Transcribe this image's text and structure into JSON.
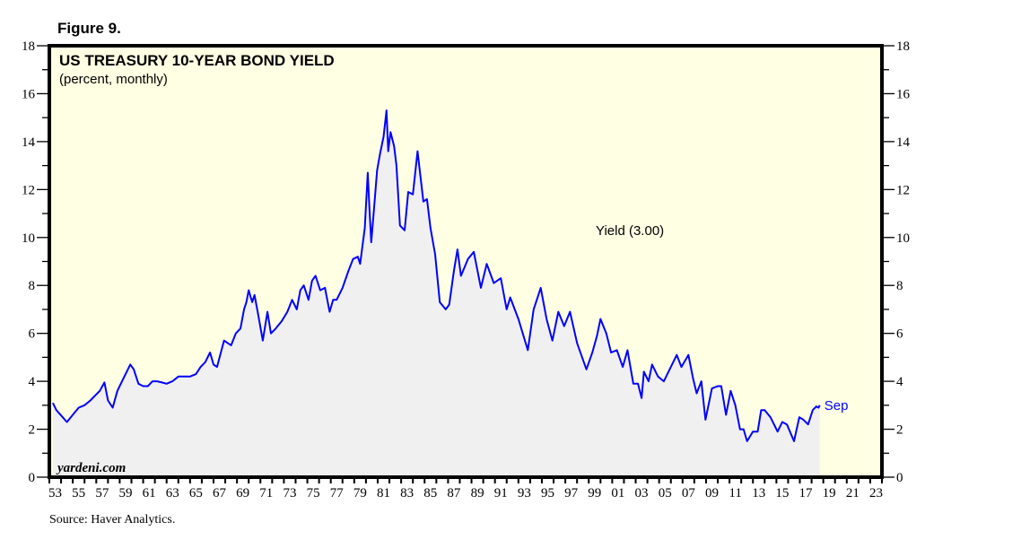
{
  "figure_label": "Figure 9.",
  "source": "Source: Haver Analytics.",
  "watermark": "yardeni.com",
  "chart_data": {
    "type": "area",
    "title": "US TREASURY 10-YEAR BOND YIELD",
    "subtitle": "(percent, monthly)",
    "xlabel": "",
    "ylabel": "",
    "xlim": [
      1953,
      2024
    ],
    "ylim": [
      0,
      18
    ],
    "y_ticks": [
      0,
      2,
      4,
      6,
      8,
      10,
      12,
      14,
      16,
      18
    ],
    "x_tick_labels": [
      "53",
      "55",
      "57",
      "59",
      "61",
      "63",
      "65",
      "67",
      "69",
      "71",
      "73",
      "75",
      "77",
      "79",
      "81",
      "83",
      "85",
      "87",
      "89",
      "91",
      "93",
      "95",
      "97",
      "99",
      "01",
      "03",
      "05",
      "07",
      "09",
      "11",
      "13",
      "15",
      "17",
      "19",
      "21",
      "23"
    ],
    "series": [
      {
        "name": "Yield (3.00)",
        "end_label": "Sep",
        "color": "#0000ff",
        "fill": "#f0f0f0",
        "points": [
          [
            1953.3,
            3.1
          ],
          [
            1953.6,
            2.8
          ],
          [
            1954.5,
            2.3
          ],
          [
            1955.0,
            2.6
          ],
          [
            1955.5,
            2.9
          ],
          [
            1956.0,
            3.0
          ],
          [
            1956.5,
            3.2
          ],
          [
            1956.9,
            3.4
          ],
          [
            1957.3,
            3.6
          ],
          [
            1957.7,
            3.95
          ],
          [
            1958.0,
            3.2
          ],
          [
            1958.4,
            2.9
          ],
          [
            1958.8,
            3.6
          ],
          [
            1959.3,
            4.1
          ],
          [
            1959.9,
            4.7
          ],
          [
            1960.2,
            4.5
          ],
          [
            1960.6,
            3.9
          ],
          [
            1961.0,
            3.8
          ],
          [
            1961.4,
            3.8
          ],
          [
            1961.8,
            4.0
          ],
          [
            1962.2,
            4.0
          ],
          [
            1962.6,
            3.95
          ],
          [
            1963.0,
            3.9
          ],
          [
            1963.5,
            4.0
          ],
          [
            1964.0,
            4.2
          ],
          [
            1964.5,
            4.2
          ],
          [
            1965.0,
            4.2
          ],
          [
            1965.5,
            4.3
          ],
          [
            1965.9,
            4.6
          ],
          [
            1966.3,
            4.8
          ],
          [
            1966.7,
            5.2
          ],
          [
            1967.0,
            4.7
          ],
          [
            1967.3,
            4.6
          ],
          [
            1967.9,
            5.7
          ],
          [
            1968.2,
            5.6
          ],
          [
            1968.5,
            5.5
          ],
          [
            1968.9,
            6.0
          ],
          [
            1969.3,
            6.2
          ],
          [
            1969.6,
            7.0
          ],
          [
            1969.8,
            7.3
          ],
          [
            1970.0,
            7.8
          ],
          [
            1970.3,
            7.3
          ],
          [
            1970.5,
            7.6
          ],
          [
            1970.8,
            6.8
          ],
          [
            1971.2,
            5.7
          ],
          [
            1971.6,
            6.9
          ],
          [
            1971.9,
            6.0
          ],
          [
            1972.3,
            6.2
          ],
          [
            1972.8,
            6.5
          ],
          [
            1973.3,
            6.9
          ],
          [
            1973.7,
            7.4
          ],
          [
            1974.1,
            7.0
          ],
          [
            1974.4,
            7.8
          ],
          [
            1974.7,
            8.0
          ],
          [
            1975.1,
            7.4
          ],
          [
            1975.4,
            8.2
          ],
          [
            1975.7,
            8.4
          ],
          [
            1976.1,
            7.8
          ],
          [
            1976.5,
            7.9
          ],
          [
            1976.9,
            6.9
          ],
          [
            1977.2,
            7.4
          ],
          [
            1977.5,
            7.4
          ],
          [
            1978.0,
            7.9
          ],
          [
            1978.5,
            8.6
          ],
          [
            1978.9,
            9.1
          ],
          [
            1979.3,
            9.2
          ],
          [
            1979.5,
            8.9
          ],
          [
            1979.9,
            10.4
          ],
          [
            1980.15,
            12.7
          ],
          [
            1980.3,
            11.2
          ],
          [
            1980.45,
            9.8
          ],
          [
            1980.7,
            11.3
          ],
          [
            1980.95,
            12.8
          ],
          [
            1981.2,
            13.5
          ],
          [
            1981.5,
            14.2
          ],
          [
            1981.75,
            15.3
          ],
          [
            1981.9,
            13.6
          ],
          [
            1982.1,
            14.4
          ],
          [
            1982.4,
            13.8
          ],
          [
            1982.6,
            13.0
          ],
          [
            1982.9,
            10.5
          ],
          [
            1983.3,
            10.3
          ],
          [
            1983.6,
            11.9
          ],
          [
            1984.0,
            11.8
          ],
          [
            1984.4,
            13.6
          ],
          [
            1984.9,
            11.5
          ],
          [
            1985.2,
            11.6
          ],
          [
            1985.5,
            10.4
          ],
          [
            1985.9,
            9.3
          ],
          [
            1986.3,
            7.3
          ],
          [
            1986.8,
            7.0
          ],
          [
            1987.1,
            7.2
          ],
          [
            1987.5,
            8.6
          ],
          [
            1987.8,
            9.5
          ],
          [
            1988.1,
            8.4
          ],
          [
            1988.7,
            9.1
          ],
          [
            1989.2,
            9.4
          ],
          [
            1989.8,
            7.9
          ],
          [
            1990.3,
            8.9
          ],
          [
            1990.9,
            8.1
          ],
          [
            1991.5,
            8.3
          ],
          [
            1992.0,
            7.0
          ],
          [
            1992.3,
            7.5
          ],
          [
            1993.0,
            6.6
          ],
          [
            1993.8,
            5.3
          ],
          [
            1994.3,
            7.0
          ],
          [
            1994.9,
            7.9
          ],
          [
            1995.4,
            6.6
          ],
          [
            1995.9,
            5.7
          ],
          [
            1996.4,
            6.9
          ],
          [
            1996.9,
            6.3
          ],
          [
            1997.4,
            6.9
          ],
          [
            1998.0,
            5.6
          ],
          [
            1998.8,
            4.5
          ],
          [
            1999.3,
            5.2
          ],
          [
            1999.7,
            5.9
          ],
          [
            2000.0,
            6.6
          ],
          [
            2000.5,
            6.0
          ],
          [
            2000.9,
            5.2
          ],
          [
            2001.4,
            5.3
          ],
          [
            2001.9,
            4.6
          ],
          [
            2002.3,
            5.3
          ],
          [
            2002.8,
            3.9
          ],
          [
            2003.2,
            3.9
          ],
          [
            2003.5,
            3.3
          ],
          [
            2003.7,
            4.4
          ],
          [
            2004.1,
            4.0
          ],
          [
            2004.4,
            4.7
          ],
          [
            2004.9,
            4.2
          ],
          [
            2005.4,
            4.0
          ],
          [
            2005.9,
            4.5
          ],
          [
            2006.5,
            5.1
          ],
          [
            2006.9,
            4.6
          ],
          [
            2007.5,
            5.1
          ],
          [
            2007.9,
            4.1
          ],
          [
            2008.2,
            3.5
          ],
          [
            2008.6,
            4.0
          ],
          [
            2008.95,
            2.4
          ],
          [
            2009.5,
            3.7
          ],
          [
            2010.0,
            3.8
          ],
          [
            2010.3,
            3.8
          ],
          [
            2010.7,
            2.6
          ],
          [
            2011.1,
            3.6
          ],
          [
            2011.5,
            3.0
          ],
          [
            2011.9,
            2.0
          ],
          [
            2012.2,
            2.0
          ],
          [
            2012.5,
            1.5
          ],
          [
            2013.0,
            1.9
          ],
          [
            2013.4,
            1.9
          ],
          [
            2013.7,
            2.8
          ],
          [
            2014.0,
            2.8
          ],
          [
            2014.5,
            2.5
          ],
          [
            2015.1,
            1.9
          ],
          [
            2015.5,
            2.3
          ],
          [
            2015.9,
            2.2
          ],
          [
            2016.5,
            1.5
          ],
          [
            2016.95,
            2.5
          ],
          [
            2017.3,
            2.4
          ],
          [
            2017.7,
            2.2
          ],
          [
            2018.1,
            2.8
          ],
          [
            2018.4,
            2.95
          ],
          [
            2018.6,
            2.9
          ],
          [
            2018.7,
            3.0
          ]
        ]
      }
    ]
  }
}
